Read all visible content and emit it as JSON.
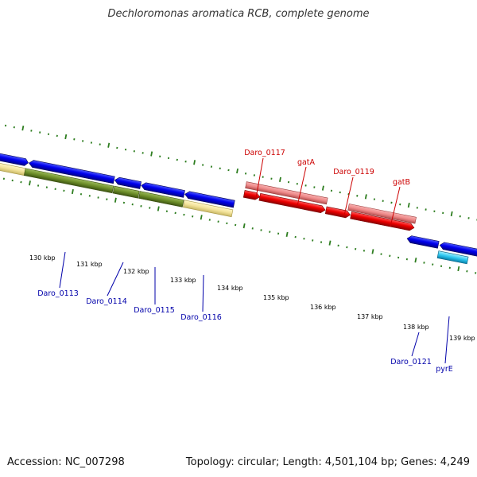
{
  "title": "Dechloromonas aromatica RCB, complete genome",
  "footer": {
    "accession": "Accession: NC_007298",
    "summary": "Topology: circular; Length: 4,501,104 bp; Genes: 4,249"
  },
  "colors": {
    "backbone": "#8a8a8a",
    "tick": "#2d7d1f",
    "forward_label": "#cc0000",
    "reverse_label": "#0000aa"
  },
  "kbp_labels": [
    "130 kbp",
    "131 kbp",
    "132 kbp",
    "133 kbp",
    "134 kbp",
    "135 kbp",
    "136 kbp",
    "137 kbp",
    "138 kbp",
    "139 kbp"
  ],
  "forward_genes": [
    "Daro_0117",
    "gatA",
    "Daro_0119",
    "gatB"
  ],
  "reverse_genes": [
    "Daro_0113",
    "Daro_0114",
    "Daro_0115",
    "Daro_0116",
    "Daro_0121",
    "pyrE"
  ]
}
